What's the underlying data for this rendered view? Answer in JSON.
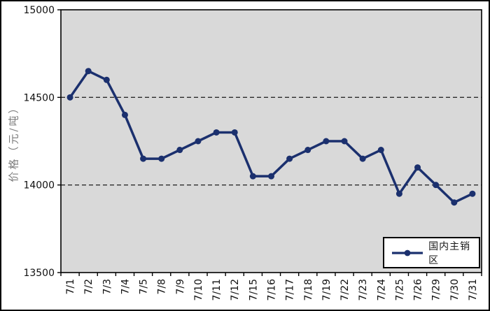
{
  "chart_data": {
    "type": "line",
    "title": "",
    "xlabel": "",
    "ylabel": "价格（元/吨）",
    "categories": [
      "7/1",
      "7/2",
      "7/3",
      "7/4",
      "7/5",
      "7/8",
      "7/9",
      "7/10",
      "7/11",
      "7/12",
      "7/15",
      "7/16",
      "7/17",
      "7/18",
      "7/19",
      "7/22",
      "7/23",
      "7/24",
      "7/25",
      "7/26",
      "7/29",
      "7/30",
      "7/31"
    ],
    "series": [
      {
        "name": "国内主销区",
        "values": [
          14500,
          14650,
          14600,
          14400,
          14150,
          14150,
          14200,
          14250,
          14300,
          14300,
          14050,
          14050,
          14150,
          14200,
          14250,
          14250,
          14150,
          14200,
          13950,
          14100,
          14000,
          13900,
          13950
        ]
      }
    ],
    "ylim": [
      13500,
      15000
    ],
    "yticks": [
      13500,
      14000,
      14500,
      15000
    ],
    "gridline_values": [
      14000,
      14500
    ],
    "gridline_style": "dashed",
    "legend_position": "bottom-right",
    "marker": "circle",
    "colors": {
      "series": "#1b306e",
      "plot_background": "#d9d9d9",
      "gridline": "#2b2b2b",
      "axis": "#000000",
      "tick_label": "#111111",
      "y_title": "#7b7b7b"
    }
  }
}
